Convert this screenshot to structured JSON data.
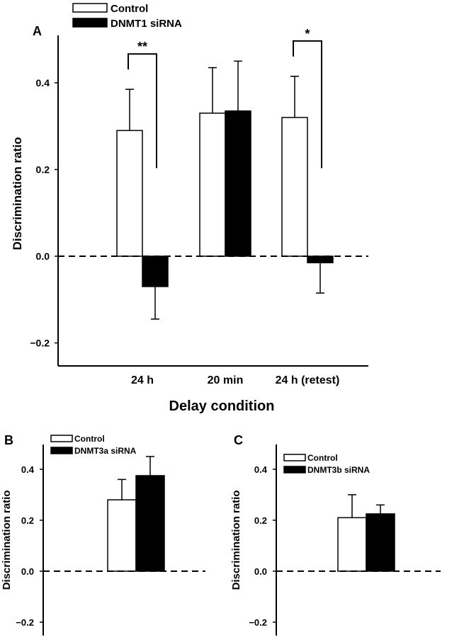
{
  "chart_data": [
    {
      "panel": "A",
      "type": "bar",
      "xlabel": "Delay condition",
      "ylabel": "Discrimination ratio",
      "ylim": [
        -0.25,
        0.5
      ],
      "yticks": [
        "0.4",
        "0.2",
        "0.0",
        "−0.2"
      ],
      "categories": [
        "24 h",
        "20 min",
        "24 h (retest)"
      ],
      "series": [
        {
          "name": "Control",
          "color": "#ffffff",
          "values": [
            0.29,
            0.33,
            0.32
          ],
          "errors": [
            0.095,
            0.105,
            0.095
          ]
        },
        {
          "name": "DNMT1 siRNA",
          "color": "#000000",
          "values": [
            -0.07,
            0.335,
            -0.015
          ],
          "errors": [
            0.075,
            0.115,
            0.07
          ]
        }
      ],
      "significance": [
        "**",
        "",
        "*"
      ],
      "baseline": "dashed line at 0.0",
      "legend": "top-left"
    },
    {
      "panel": "B",
      "type": "bar",
      "xlabel": "",
      "ylabel": "Discrimination ratio",
      "ylim": [
        -0.25,
        0.5
      ],
      "yticks": [
        "0.4",
        "0.2",
        "0.0",
        "−0.2"
      ],
      "categories": [
        ""
      ],
      "series": [
        {
          "name": "Control",
          "color": "#ffffff",
          "values": [
            0.28
          ],
          "errors": [
            0.08
          ]
        },
        {
          "name": "DNMT3a siRNA",
          "color": "#000000",
          "values": [
            0.375
          ],
          "errors": [
            0.075
          ]
        }
      ],
      "baseline": "dashed line at 0.0",
      "legend": "top-left"
    },
    {
      "panel": "C",
      "type": "bar",
      "xlabel": "",
      "ylabel": "Discrimination ratio",
      "ylim": [
        -0.25,
        0.5
      ],
      "yticks": [
        "0.4",
        "0.2",
        "0.0",
        "−0.2"
      ],
      "categories": [
        ""
      ],
      "series": [
        {
          "name": "Control",
          "color": "#ffffff",
          "values": [
            0.21
          ],
          "errors": [
            0.09
          ]
        },
        {
          "name": "DNMT3b siRNA",
          "color": "#000000",
          "values": [
            0.225
          ],
          "errors": [
            0.035
          ]
        }
      ],
      "baseline": "dashed line at 0.0",
      "legend": "top-left"
    }
  ]
}
